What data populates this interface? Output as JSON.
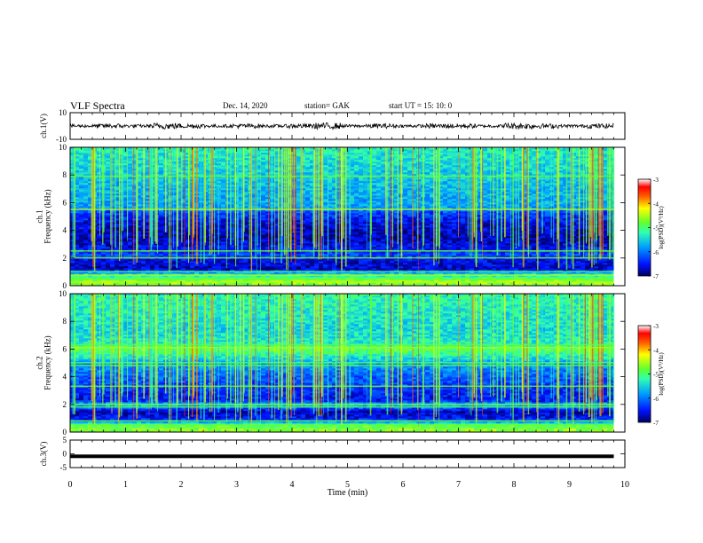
{
  "header": {
    "title": "VLF Spectra",
    "date": "Dec. 14, 2020",
    "station": "station= GAK",
    "start_time": "start  UT  =   15: 10: 0"
  },
  "colors": {
    "axes": "#000000",
    "background": "#ffffff",
    "colormap": [
      "#000060",
      "#0000a0",
      "#0020ff",
      "#00a0ff",
      "#30ffc0",
      "#80ff40",
      "#ffff00",
      "#ff8000",
      "#ff0000",
      "#ff8888",
      "#ffffff"
    ]
  },
  "chart_data": [
    {
      "type": "line",
      "name": "ch1-waveform",
      "ylabel": "ch.1(V)",
      "ylim": [
        -10,
        10
      ],
      "yticks": [
        "10",
        "-10"
      ],
      "x_range_min": [
        0,
        9.8
      ],
      "series_description_values": [
        2,
        3,
        2,
        4,
        3,
        2,
        3,
        2,
        3,
        4,
        2,
        3,
        2,
        3,
        3,
        2,
        4,
        3,
        2,
        3
      ]
    },
    {
      "type": "heatmap",
      "name": "ch1-spectrogram",
      "ylabel": "ch.1\nFrequency  (kHz)",
      "ylim": [
        0,
        10
      ],
      "yticks": [
        "0",
        "2",
        "4",
        "6",
        "8",
        "10"
      ],
      "xlim": [
        0,
        10
      ],
      "data_xmax": 9.8,
      "colorbar": {
        "label": "log(PSD)(V²/Hz)",
        "range": [
          -7,
          -3
        ],
        "ticks": [
          "-3",
          "-4",
          "-5",
          "-6",
          "-7"
        ]
      },
      "freq_profile": [
        {
          "f": 0.0,
          "level": 0.55
        },
        {
          "f": 0.3,
          "level": 0.62
        },
        {
          "f": 0.6,
          "level": 0.5
        },
        {
          "f": 0.9,
          "level": 0.35
        },
        {
          "f": 1.2,
          "level": 0.08
        },
        {
          "f": 1.9,
          "level": 0.1
        },
        {
          "f": 2.2,
          "level": 0.2
        },
        {
          "f": 2.6,
          "level": 0.12
        },
        {
          "f": 3.5,
          "level": 0.06
        },
        {
          "f": 4.5,
          "level": 0.1
        },
        {
          "f": 5.3,
          "level": 0.18
        },
        {
          "f": 5.6,
          "level": 0.3
        },
        {
          "f": 6.5,
          "level": 0.32
        },
        {
          "f": 8.0,
          "level": 0.36
        },
        {
          "f": 10.0,
          "level": 0.42
        }
      ]
    },
    {
      "type": "heatmap",
      "name": "ch2-spectrogram",
      "ylabel": "ch.2\nFrequency  (kHz)",
      "ylim": [
        0,
        10
      ],
      "yticks": [
        "0",
        "2",
        "4",
        "6",
        "8",
        "10"
      ],
      "xlim": [
        0,
        10
      ],
      "data_xmax": 9.8,
      "colorbar": {
        "label": "log(PSD)(V²/Hz)",
        "range": [
          -7,
          -3
        ],
        "ticks": [
          "-3",
          "-4",
          "-5",
          "-6",
          "-7"
        ]
      },
      "freq_profile": [
        {
          "f": 0.0,
          "level": 0.55
        },
        {
          "f": 0.3,
          "level": 0.62
        },
        {
          "f": 0.6,
          "level": 0.45
        },
        {
          "f": 0.9,
          "level": 0.15
        },
        {
          "f": 1.5,
          "level": 0.06
        },
        {
          "f": 2.0,
          "level": 0.35
        },
        {
          "f": 2.3,
          "level": 0.12
        },
        {
          "f": 3.0,
          "level": 0.15
        },
        {
          "f": 4.0,
          "level": 0.22
        },
        {
          "f": 5.0,
          "level": 0.3
        },
        {
          "f": 6.0,
          "level": 0.55
        },
        {
          "f": 6.4,
          "level": 0.42
        },
        {
          "f": 7.5,
          "level": 0.38
        },
        {
          "f": 10.0,
          "level": 0.45
        }
      ]
    },
    {
      "type": "line",
      "name": "ch3-waveform",
      "ylabel": "ch.3(V)",
      "ylim": [
        -5,
        5
      ],
      "yticks": [
        "5",
        "0",
        "-5"
      ],
      "constant_value": -0.9
    }
  ],
  "xaxis": {
    "label": "Time  (min)",
    "ticks": [
      "0",
      "1",
      "2",
      "3",
      "4",
      "5",
      "6",
      "7",
      "8",
      "9",
      "10"
    ],
    "range": [
      0,
      10
    ]
  }
}
